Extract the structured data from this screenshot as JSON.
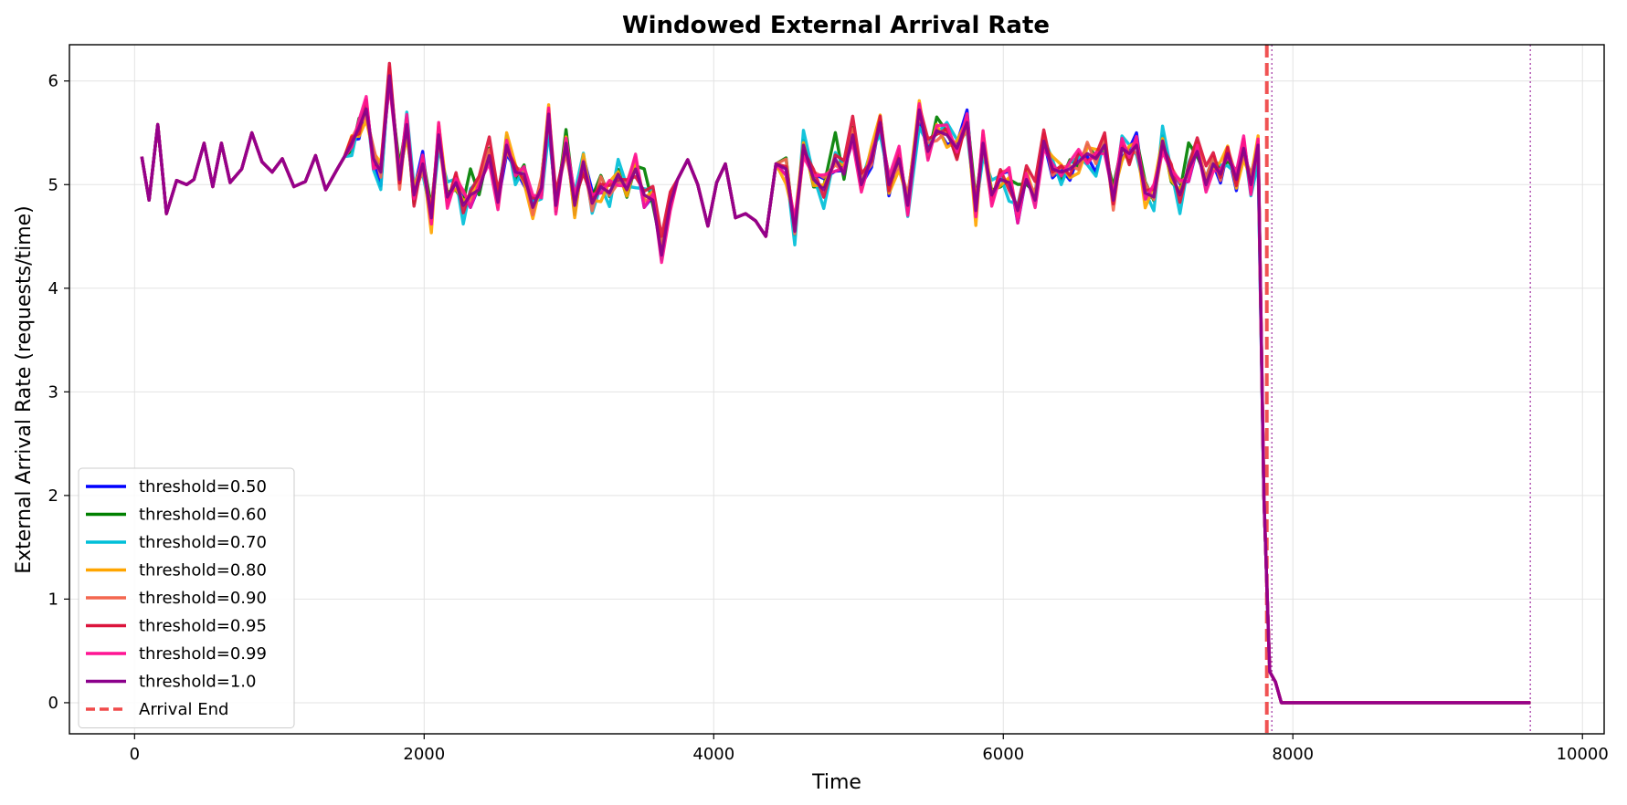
{
  "chart_data": {
    "type": "line",
    "title": "Windowed External Arrival Rate",
    "xlabel": "Time",
    "ylabel": "External Arrival Rate (requests/time)",
    "xlim": [
      -450,
      10150
    ],
    "ylim": [
      -0.3,
      6.35
    ],
    "xticks": [
      0,
      2000,
      4000,
      6000,
      8000,
      10000
    ],
    "yticks": [
      0,
      1,
      2,
      3,
      4,
      5,
      6
    ],
    "grid": true,
    "legend_position": "lower-left",
    "series": [
      {
        "name": "threshold=0.50",
        "color": "#0000ff",
        "offset": [
          0.0,
          -0.14,
          0.05,
          -0.18,
          0.12,
          -0.05,
          -0.22,
          0.1,
          0.05,
          -0.15,
          0.08,
          0.2,
          -0.1,
          0.02,
          -0.12,
          0.09,
          0.18,
          -0.2,
          0.06,
          -0.04
        ]
      },
      {
        "name": "threshold=0.60",
        "color": "#008000",
        "offset": [
          0.1,
          0.06,
          -0.12,
          0.15,
          -0.08,
          0.14,
          0.03,
          -0.1,
          0.22,
          0.05,
          -0.14,
          0.1,
          0.18,
          -0.06,
          0.08,
          -0.12,
          0.05,
          0.42,
          -0.08,
          0.12
        ]
      },
      {
        "name": "threshold=0.70",
        "color": "#00bfd8",
        "offset": [
          0.05,
          0.15,
          -0.2,
          0.1,
          0.08,
          -0.18,
          -0.28,
          0.12,
          -0.05,
          0.2,
          0.14,
          -0.16,
          0.02,
          -0.22,
          0.24,
          0.06,
          -0.3,
          0.1,
          0.16,
          -0.08
        ]
      },
      {
        "name": "threshold=0.80",
        "color": "#ffa500",
        "offset": [
          -0.08,
          0.2,
          0.12,
          -0.14,
          -0.18,
          0.1,
          0.15,
          -0.06,
          0.1,
          -0.2,
          0.12,
          0.05,
          -0.24,
          0.18,
          0.04,
          -0.1,
          0.08,
          -0.05,
          0.14,
          0.02
        ]
      },
      {
        "name": "threshold=0.90",
        "color": "#f4674f",
        "offset": [
          0.12,
          -0.1,
          0.08,
          0.05,
          -0.12,
          0.18,
          -0.08,
          0.14,
          -0.16,
          0.06,
          0.02,
          -0.12,
          0.16,
          -0.04,
          -0.14,
          0.12,
          0.2,
          -0.1,
          0.04,
          0.1
        ]
      },
      {
        "name": "threshold=0.95",
        "color": "#dc143c",
        "offset": [
          0.18,
          -0.05,
          0.1,
          -0.1,
          0.15,
          -0.12,
          0.06,
          0.2,
          -0.06,
          0.1,
          -0.18,
          0.08,
          0.04,
          0.12,
          -0.08,
          0.16,
          -0.12,
          0.06,
          0.22,
          0.3
        ]
      },
      {
        "name": "threshold=0.99",
        "color": "#ff1493",
        "offset": [
          -0.12,
          0.08,
          -0.06,
          0.12,
          0.2,
          -0.16,
          0.1,
          -0.14,
          0.08,
          0.16,
          -0.06,
          0.14,
          -0.1,
          0.2,
          -0.18,
          0.06,
          0.24,
          -0.2,
          0.1,
          -0.12
        ]
      },
      {
        "name": "threshold=1.0",
        "color": "#8b008b",
        "offset": [
          0,
          0,
          0,
          0,
          0,
          0,
          0,
          0,
          0,
          0,
          0,
          0,
          0,
          0,
          0,
          0,
          0,
          0,
          0,
          0
        ]
      }
    ],
    "base_x": [
      50,
      100,
      160,
      220,
      290,
      360,
      410,
      480,
      540,
      600,
      660,
      740,
      810,
      880,
      950,
      1020,
      1100,
      1180,
      1250,
      1320,
      1400,
      1450,
      1500,
      1550,
      1600,
      1650,
      1700,
      1760,
      1830,
      1880,
      1930,
      1990,
      2050,
      2100,
      2160,
      2220,
      2270,
      2320,
      2380,
      2450,
      2510,
      2570,
      2630,
      2690,
      2750,
      2810,
      2860,
      2910,
      2980,
      3040,
      3100,
      3160,
      3220,
      3280,
      3340,
      3400,
      3460,
      3520,
      3580,
      3640,
      3700,
      3750,
      3820,
      3890,
      3960,
      4020,
      4080,
      4150,
      4220,
      4290,
      4360,
      4430,
      4500,
      4560,
      4620,
      4690,
      4760,
      4840,
      4900,
      4960,
      5020,
      5090,
      5150,
      5210,
      5280,
      5340,
      5420,
      5480,
      5540,
      5610,
      5680,
      5750,
      5810,
      5860,
      5920,
      5980,
      6040,
      6100,
      6160,
      6220,
      6280,
      6340,
      6400,
      6460,
      6520,
      6580,
      6640,
      6700,
      6760,
      6820,
      6870,
      6920,
      6980,
      7040,
      7100,
      7160,
      7220,
      7280,
      7340,
      7400,
      7450,
      7500,
      7550,
      7610,
      7660,
      7710,
      7760,
      7800,
      7840,
      7880,
      7920,
      9640
    ],
    "base_y": [
      5.27,
      4.85,
      5.58,
      4.72,
      5.04,
      5.0,
      5.05,
      5.4,
      4.98,
      5.4,
      5.02,
      5.15,
      5.5,
      5.22,
      5.12,
      5.25,
      4.98,
      5.03,
      5.28,
      4.95,
      5.15,
      5.27,
      5.4,
      5.55,
      5.73,
      5.25,
      5.12,
      6.05,
      5.05,
      5.58,
      4.9,
      5.2,
      4.68,
      5.48,
      4.88,
      5.02,
      4.8,
      4.9,
      4.95,
      5.28,
      4.83,
      5.38,
      5.12,
      5.1,
      4.78,
      4.97,
      5.68,
      4.8,
      5.4,
      4.8,
      5.22,
      4.82,
      4.98,
      4.92,
      5.1,
      4.95,
      5.15,
      4.9,
      4.85,
      4.32,
      4.82,
      5.05,
      5.24,
      5.0,
      4.6,
      5.02,
      5.2,
      4.68,
      4.72,
      4.65,
      4.5,
      5.2,
      5.15,
      4.55,
      5.38,
      5.05,
      4.95,
      5.25,
      5.1,
      5.48,
      5.0,
      5.25,
      5.6,
      5.0,
      5.25,
      4.8,
      5.72,
      5.32,
      5.52,
      5.48,
      5.35,
      5.6,
      4.75,
      5.4,
      4.9,
      5.05,
      5.02,
      4.75,
      5.05,
      4.85,
      5.42,
      5.15,
      5.12,
      5.15,
      5.22,
      5.3,
      5.25,
      5.38,
      4.85,
      5.35,
      5.3,
      5.38,
      4.92,
      4.88,
      5.42,
      5.1,
      4.9,
      5.15,
      5.32,
      5.0,
      5.2,
      5.1,
      5.3,
      5.05,
      5.35,
      5.0,
      5.38,
      2.0,
      0.3,
      0.2,
      0.0,
      0.0
    ],
    "arrival_end": {
      "name": "Arrival End",
      "x": 7820,
      "color": "#f04a4a"
    },
    "end_markers": [
      {
        "x": 7855,
        "color": "#8b008b"
      },
      {
        "x": 9640,
        "color": "#8b008b"
      }
    ]
  }
}
